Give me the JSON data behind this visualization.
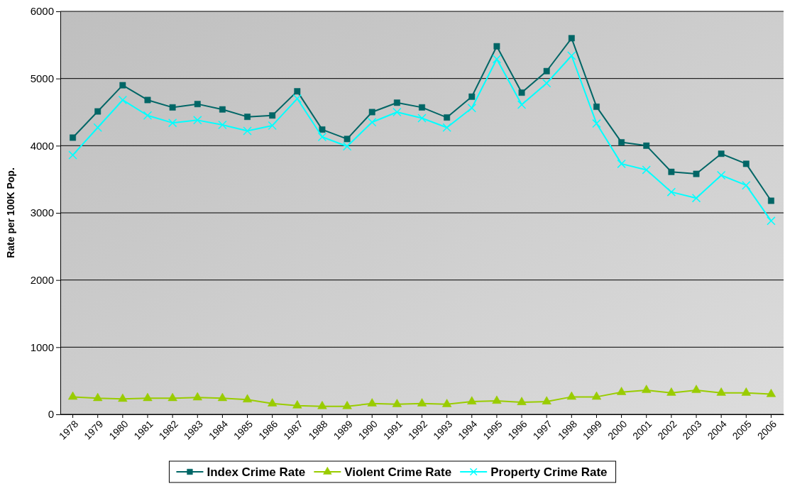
{
  "chart_data": {
    "type": "line",
    "ylabel": "Rate per 100K Pop.",
    "categories": [
      "1978",
      "1979",
      "1980",
      "1981",
      "1982",
      "1983",
      "1984",
      "1985",
      "1986",
      "1987",
      "1988",
      "1989",
      "1990",
      "1991",
      "1992",
      "1993",
      "1994",
      "1995",
      "1996",
      "1997",
      "1998",
      "1999",
      "2000",
      "2001",
      "2002",
      "2003",
      "2004",
      "2005",
      "2006"
    ],
    "series": [
      {
        "name": "Index Crime Rate",
        "color": "#006666",
        "marker": "square",
        "values": [
          4120,
          4510,
          4900,
          4680,
          4570,
          4620,
          4540,
          4430,
          4450,
          4810,
          4240,
          4100,
          4500,
          4640,
          4570,
          4420,
          4730,
          5480,
          4790,
          5110,
          5600,
          4580,
          4050,
          4000,
          3610,
          3580,
          3880,
          3730,
          3180
        ]
      },
      {
        "name": "Violent Crime Rate",
        "color": "#99cc00",
        "marker": "triangle",
        "values": [
          260,
          240,
          230,
          240,
          240,
          250,
          240,
          220,
          160,
          130,
          120,
          120,
          160,
          150,
          160,
          150,
          190,
          200,
          180,
          190,
          260,
          260,
          330,
          360,
          320,
          360,
          320,
          320,
          300
        ]
      },
      {
        "name": "Property Crime Rate",
        "color": "#00ffff",
        "marker": "cross",
        "values": [
          3860,
          4270,
          4680,
          4450,
          4340,
          4380,
          4310,
          4220,
          4300,
          4700,
          4130,
          3990,
          4350,
          4500,
          4410,
          4270,
          4560,
          5290,
          4610,
          4930,
          5340,
          4330,
          3730,
          3640,
          3310,
          3220,
          3560,
          3410,
          2880
        ]
      }
    ],
    "ylim": [
      0,
      6000
    ],
    "yticks": [
      0,
      1000,
      2000,
      3000,
      4000,
      5000,
      6000
    ],
    "grid": "y",
    "legend": "bottom"
  }
}
